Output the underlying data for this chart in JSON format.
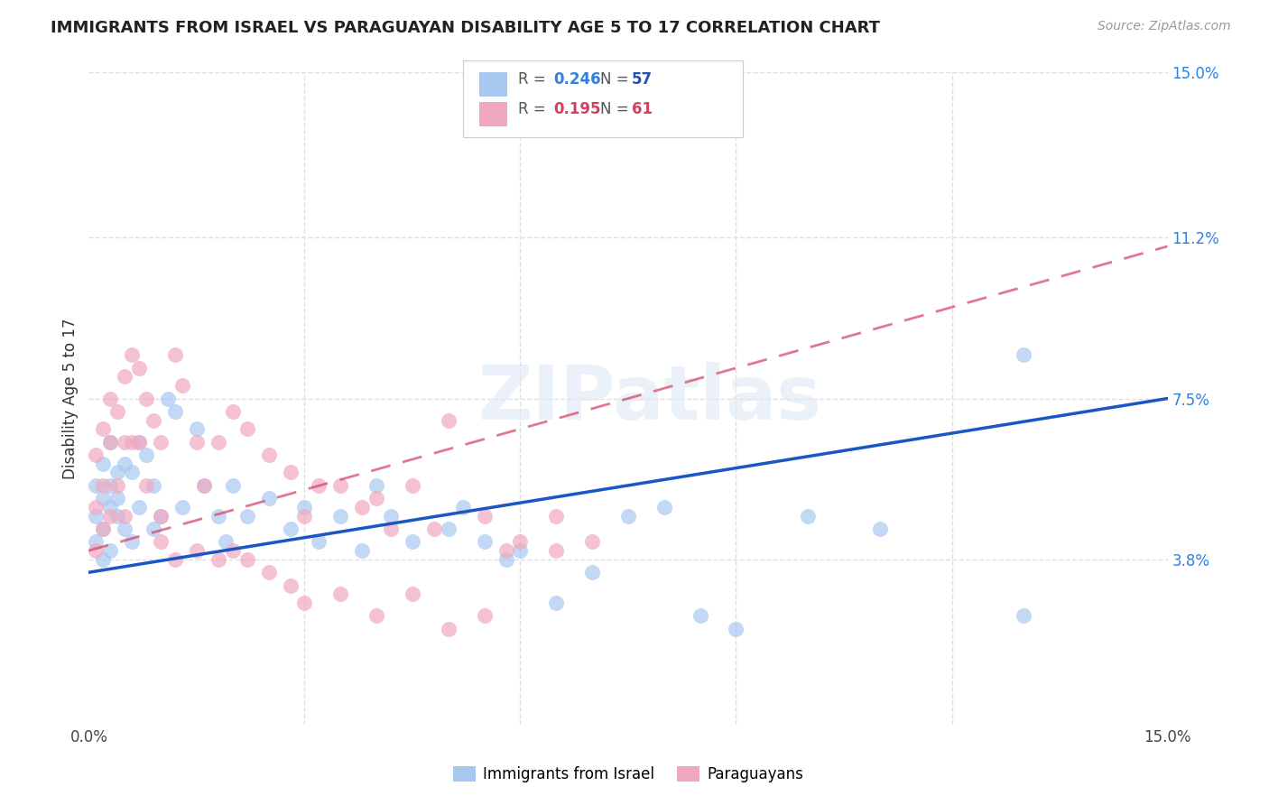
{
  "title": "IMMIGRANTS FROM ISRAEL VS PARAGUAYAN DISABILITY AGE 5 TO 17 CORRELATION CHART",
  "source": "Source: ZipAtlas.com",
  "ylabel": "Disability Age 5 to 17",
  "xlim": [
    0.0,
    0.15
  ],
  "ylim": [
    0.0,
    0.15
  ],
  "y_tick_labels_right": [
    "15.0%",
    "11.2%",
    "7.5%",
    "3.8%"
  ],
  "y_tick_values_right": [
    0.15,
    0.112,
    0.075,
    0.038
  ],
  "grid_color": "#e0e0e0",
  "background_color": "#ffffff",
  "watermark": "ZIPatlas",
  "israel_color": "#a8c8f0",
  "paraguay_color": "#f0a8c0",
  "israel_line_color": "#1a56c4",
  "paraguay_line_color": "#d44060",
  "r_color": "#3080e0",
  "n_color": "#2050b0",
  "israel_r": "0.246",
  "israel_n": "57",
  "paraguay_r": "0.195",
  "paraguay_n": "61",
  "israel_scatter_x": [
    0.001,
    0.001,
    0.001,
    0.002,
    0.002,
    0.002,
    0.002,
    0.003,
    0.003,
    0.003,
    0.003,
    0.004,
    0.004,
    0.004,
    0.005,
    0.005,
    0.006,
    0.006,
    0.007,
    0.007,
    0.008,
    0.009,
    0.009,
    0.01,
    0.011,
    0.012,
    0.013,
    0.015,
    0.016,
    0.018,
    0.019,
    0.02,
    0.022,
    0.025,
    0.028,
    0.03,
    0.032,
    0.035,
    0.038,
    0.04,
    0.042,
    0.045,
    0.05,
    0.052,
    0.055,
    0.058,
    0.06,
    0.065,
    0.07,
    0.075,
    0.08,
    0.085,
    0.09,
    0.1,
    0.11,
    0.13,
    0.13
  ],
  "israel_scatter_y": [
    0.055,
    0.048,
    0.042,
    0.06,
    0.052,
    0.045,
    0.038,
    0.065,
    0.055,
    0.05,
    0.04,
    0.058,
    0.052,
    0.048,
    0.06,
    0.045,
    0.058,
    0.042,
    0.065,
    0.05,
    0.062,
    0.055,
    0.045,
    0.048,
    0.075,
    0.072,
    0.05,
    0.068,
    0.055,
    0.048,
    0.042,
    0.055,
    0.048,
    0.052,
    0.045,
    0.05,
    0.042,
    0.048,
    0.04,
    0.055,
    0.048,
    0.042,
    0.045,
    0.05,
    0.042,
    0.038,
    0.04,
    0.028,
    0.035,
    0.048,
    0.05,
    0.025,
    0.022,
    0.048,
    0.045,
    0.025,
    0.085
  ],
  "paraguay_scatter_x": [
    0.001,
    0.001,
    0.001,
    0.002,
    0.002,
    0.002,
    0.003,
    0.003,
    0.003,
    0.004,
    0.004,
    0.005,
    0.005,
    0.005,
    0.006,
    0.006,
    0.007,
    0.007,
    0.008,
    0.008,
    0.009,
    0.01,
    0.01,
    0.012,
    0.013,
    0.015,
    0.016,
    0.018,
    0.02,
    0.022,
    0.025,
    0.028,
    0.03,
    0.032,
    0.035,
    0.038,
    0.04,
    0.042,
    0.045,
    0.048,
    0.05,
    0.055,
    0.058,
    0.06,
    0.065,
    0.07,
    0.01,
    0.012,
    0.015,
    0.018,
    0.02,
    0.022,
    0.025,
    0.028,
    0.03,
    0.035,
    0.04,
    0.045,
    0.05,
    0.055,
    0.065
  ],
  "paraguay_scatter_y": [
    0.05,
    0.062,
    0.04,
    0.068,
    0.055,
    0.045,
    0.075,
    0.065,
    0.048,
    0.072,
    0.055,
    0.08,
    0.065,
    0.048,
    0.085,
    0.065,
    0.082,
    0.065,
    0.075,
    0.055,
    0.07,
    0.065,
    0.048,
    0.085,
    0.078,
    0.065,
    0.055,
    0.065,
    0.072,
    0.068,
    0.062,
    0.058,
    0.048,
    0.055,
    0.055,
    0.05,
    0.052,
    0.045,
    0.055,
    0.045,
    0.07,
    0.048,
    0.04,
    0.042,
    0.048,
    0.042,
    0.042,
    0.038,
    0.04,
    0.038,
    0.04,
    0.038,
    0.035,
    0.032,
    0.028,
    0.03,
    0.025,
    0.03,
    0.022,
    0.025,
    0.04
  ],
  "israel_trend": [
    0.035,
    0.075
  ],
  "paraguay_trend": [
    0.04,
    0.11
  ]
}
